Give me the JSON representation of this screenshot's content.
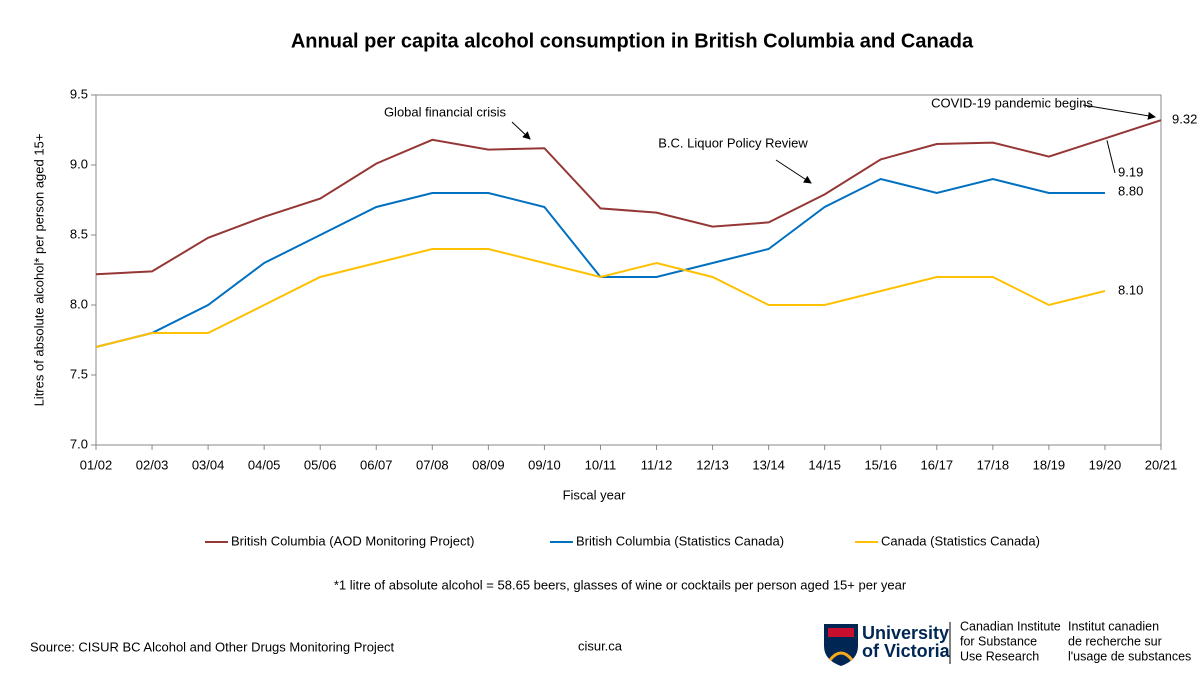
{
  "chart_data": {
    "type": "line",
    "title": "Annual per capita alcohol consumption in British Columbia and Canada",
    "x_label": "Fiscal year",
    "y_label": "Litres of absolute alcohol* per person aged 15+",
    "categories": [
      "01/02",
      "02/03",
      "03/04",
      "04/05",
      "05/06",
      "06/07",
      "07/08",
      "08/09",
      "09/10",
      "10/11",
      "11/12",
      "12/13",
      "13/14",
      "14/15",
      "15/16",
      "16/17",
      "17/18",
      "18/19",
      "19/20",
      "20/21"
    ],
    "series": [
      {
        "name": "British Columbia (AOD Monitoring Project)",
        "color": "#953735",
        "values": [
          8.22,
          8.24,
          8.48,
          8.63,
          8.76,
          9.01,
          9.18,
          9.11,
          9.12,
          8.69,
          8.66,
          8.56,
          8.59,
          8.79,
          9.04,
          9.15,
          9.16,
          9.06,
          9.19,
          9.32
        ],
        "value_labels": [
          null,
          null,
          null,
          null,
          null,
          null,
          null,
          null,
          null,
          null,
          null,
          null,
          null,
          null,
          null,
          null,
          null,
          null,
          "9.19",
          "9.32"
        ]
      },
      {
        "name": "British Columbia (Statistics Canada)",
        "color": "#0070c0",
        "values": [
          7.7,
          7.8,
          8.0,
          8.3,
          8.5,
          8.7,
          8.8,
          8.8,
          8.7,
          8.2,
          8.2,
          8.3,
          8.4,
          8.7,
          8.9,
          8.8,
          8.9,
          8.8,
          8.8,
          null
        ],
        "value_labels": [
          null,
          null,
          null,
          null,
          null,
          null,
          null,
          null,
          null,
          null,
          null,
          null,
          null,
          null,
          null,
          null,
          null,
          null,
          "8.80",
          null
        ]
      },
      {
        "name": "Canada (Statistics Canada)",
        "color": "#ffc000",
        "values": [
          7.7,
          7.8,
          7.8,
          8.0,
          8.2,
          8.3,
          8.4,
          8.4,
          8.3,
          8.2,
          8.3,
          8.2,
          8.0,
          8.0,
          8.1,
          8.2,
          8.2,
          8.0,
          8.1,
          null
        ],
        "value_labels": [
          null,
          null,
          null,
          null,
          null,
          null,
          null,
          null,
          null,
          null,
          null,
          null,
          null,
          null,
          null,
          null,
          null,
          null,
          "8.10",
          null
        ]
      }
    ],
    "ylim": [
      7.0,
      9.5
    ],
    "yticks": [
      {
        "value": 7,
        "label": "7.0"
      },
      {
        "value": 7.5,
        "label": "7.5"
      },
      {
        "value": 8,
        "label": "8.0"
      },
      {
        "value": 8.5,
        "label": "8.5"
      },
      {
        "value": 9,
        "label": "9.0"
      },
      {
        "value": 9.5,
        "label": "9.5"
      }
    ],
    "grid": false,
    "legend": "bottom",
    "annotations": [
      "Global financial crisis",
      "B.C. Liquor Policy Review",
      "COVID-19 pandemic begins"
    ],
    "footnote": "*1 litre of absolute alcohol = 58.65 beers, glasses of wine or cocktails per person aged 15+ per year",
    "source": "Source: CISUR BC Alcohol and Other Drugs Monitoring Project",
    "website": "cisur.ca",
    "logo": {
      "university": [
        "University",
        "of Victoria"
      ],
      "english": [
        "Canadian Institute",
        "for Substance",
        "Use Research"
      ],
      "french": [
        "Institut canadien",
        "de recherche sur",
        "l'usage de substances"
      ]
    }
  }
}
